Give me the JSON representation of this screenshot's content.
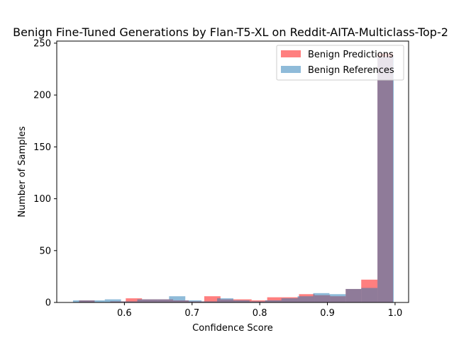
{
  "chart_data": {
    "type": "bar",
    "title": "Benign Fine-Tuned Generations by Flan-T5-XL on Reddit-AITA-Multiclass-Top-2",
    "xlabel": "Confidence Score",
    "ylabel": "Number of Samples",
    "xlim": [
      0.5,
      1.02
    ],
    "ylim": [
      0,
      252
    ],
    "xticks": [
      "0.6",
      "0.7",
      "0.8",
      "0.9",
      "1.0"
    ],
    "yticks": [
      "0",
      "50",
      "100",
      "150",
      "200",
      "250"
    ],
    "legend_position": "top-right",
    "series": [
      {
        "name": "Benign Predictions",
        "color": "#ff0000",
        "opacity": 0.5,
        "bin_edges": [
          0.533,
          0.556,
          0.579,
          0.602,
          0.626,
          0.649,
          0.672,
          0.695,
          0.718,
          0.742,
          0.765,
          0.788,
          0.811,
          0.834,
          0.858,
          0.881,
          0.904,
          0.927,
          0.95,
          0.974,
          0.997
        ],
        "values": [
          2,
          0,
          1,
          4,
          3,
          3,
          2,
          1,
          6,
          3,
          3,
          2,
          5,
          5,
          8,
          7,
          6,
          13,
          22,
          240
        ]
      },
      {
        "name": "Benign References",
        "color": "#1f77b4",
        "opacity": 0.5,
        "bin_edges": [
          0.524,
          0.548,
          0.571,
          0.595,
          0.619,
          0.643,
          0.666,
          0.69,
          0.714,
          0.737,
          0.761,
          0.785,
          0.808,
          0.832,
          0.856,
          0.879,
          0.903,
          0.927,
          0.95,
          0.974,
          0.998
        ],
        "values": [
          2,
          2,
          3,
          1,
          3,
          3,
          6,
          2,
          1,
          4,
          2,
          1,
          2,
          4,
          6,
          9,
          8,
          13,
          14,
          237
        ]
      }
    ]
  }
}
